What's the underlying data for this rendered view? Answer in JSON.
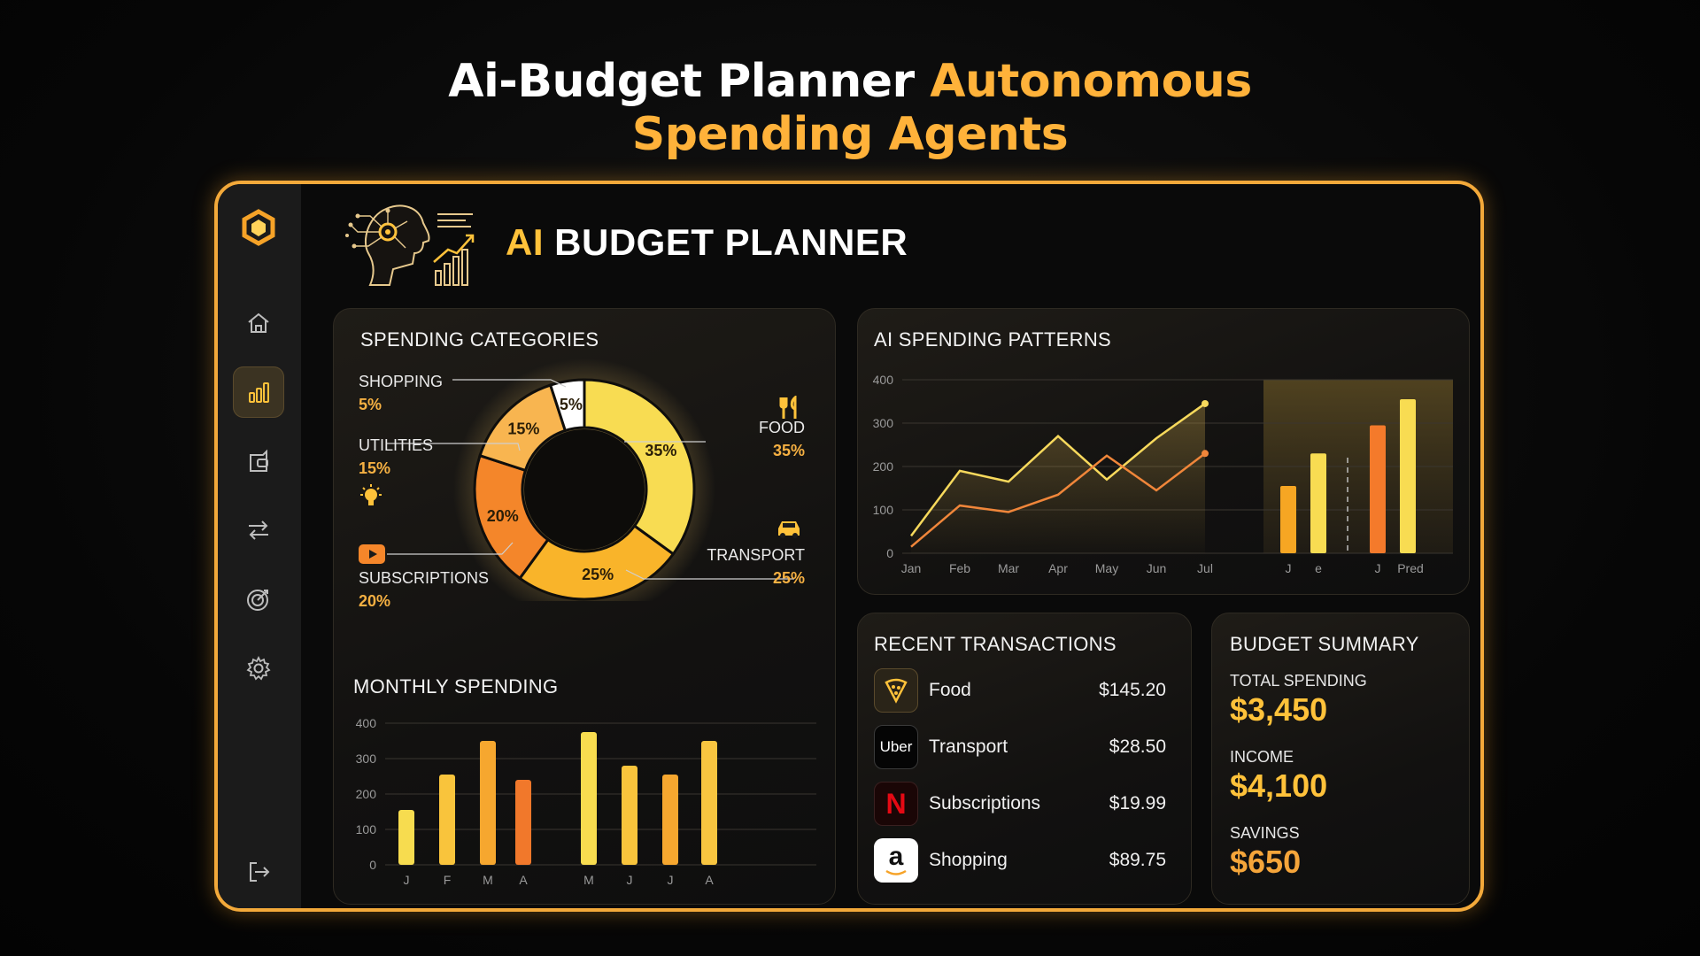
{
  "headline": {
    "line1_white": "Ai-Budget Planner",
    "line1_orange": "Autonomous",
    "line2_orange": "Spending Agents"
  },
  "app": {
    "title_accent": "AI",
    "title_rest": "BUDGET PLANNER"
  },
  "sidebar": {
    "items": [
      {
        "icon": "home-icon"
      },
      {
        "icon": "bar-chart-icon",
        "active": true
      },
      {
        "icon": "wallet-icon"
      },
      {
        "icon": "transfer-icon"
      },
      {
        "icon": "target-icon"
      },
      {
        "icon": "settings-icon"
      }
    ],
    "logout_icon": "logout-icon"
  },
  "spending_categories": {
    "title": "SPENDING CATEGORIES",
    "items": [
      {
        "label": "SHOPPING",
        "pct": "5%"
      },
      {
        "label": "UTILITIES",
        "pct": "15%"
      },
      {
        "label": "SUBSCRIPTIONS",
        "pct": "20%"
      },
      {
        "label": "FOOD",
        "pct": "35%"
      },
      {
        "label": "TRANSPORT",
        "pct": "25%"
      }
    ]
  },
  "monthly_spending": {
    "title": "MONTHLY SPENDING"
  },
  "ai_patterns": {
    "title": "AI SPENDING PATTERNS"
  },
  "recent_transactions": {
    "title": "RECENT TRANSACTIONS",
    "items": [
      {
        "name": "Food",
        "amount": "$145.20",
        "icon": "pizza-icon"
      },
      {
        "name": "Transport",
        "amount": "$28.50",
        "icon": "uber-icon",
        "icon_text": "Uber"
      },
      {
        "name": "Subscriptions",
        "amount": "$19.99",
        "icon": "netflix-icon",
        "icon_text": "N"
      },
      {
        "name": "Shopping",
        "amount": "$89.75",
        "icon": "amazon-icon",
        "icon_text": "a"
      }
    ]
  },
  "budget_summary": {
    "title": "BUDGET SUMMARY",
    "total_label": "TOTAL SPENDING",
    "total_value": "$3,450",
    "income_label": "INCOME",
    "income_value": "$4,100",
    "savings_label": "SAVINGS",
    "savings_value": "$650"
  },
  "colors": {
    "accent": "#ffc23a",
    "orange": "#f5862a",
    "yellow": "#f7dc55",
    "frame": "#f3a93a"
  },
  "chart_data": [
    {
      "id": "spending-categories",
      "type": "pie",
      "categories": [
        "FOOD",
        "TRANSPORT",
        "SUBSCRIPTIONS",
        "UTILITIES",
        "SHOPPING"
      ],
      "values": [
        35,
        25,
        20,
        15,
        5
      ],
      "slice_labels": [
        "35%",
        "25%",
        "20%",
        "15%",
        "5%"
      ],
      "colors": [
        "#f8dc52",
        "#f9b42a",
        "#f4862a",
        "#f8b550",
        "#ffffff"
      ],
      "donut": true
    },
    {
      "id": "monthly-spending",
      "type": "bar",
      "categories": [
        "J",
        "F",
        "M",
        "A",
        "M",
        "J",
        "J",
        "A"
      ],
      "values": [
        155,
        255,
        350,
        240,
        375,
        280,
        255,
        350
      ],
      "colors": [
        "#f7dc4f",
        "#f9c43c",
        "#f6a72f",
        "#f1782b",
        "#f8dc4f",
        "#f9c43c",
        "#f6a72f",
        "#f8c540"
      ],
      "yticks": [
        0,
        100,
        200,
        300,
        400
      ],
      "ylim": [
        0,
        400
      ]
    },
    {
      "id": "ai-spending-patterns",
      "type": "line",
      "x": [
        "Jan",
        "Feb",
        "Mar",
        "Apr",
        "May",
        "Jun",
        "Jul"
      ],
      "series": [
        {
          "values": [
            40,
            190,
            165,
            270,
            170,
            265,
            345
          ],
          "color": "#f7d95c"
        },
        {
          "values": [
            15,
            110,
            95,
            135,
            225,
            145,
            230
          ],
          "color": "#f0863a"
        }
      ],
      "prediction_bars": {
        "categories": [
          "J",
          "e",
          "J",
          "Pred"
        ],
        "values": [
          155,
          230,
          295,
          355
        ],
        "colors": [
          "#f6a623",
          "#f8dc52",
          "#f47a2b",
          "#f8dc52"
        ]
      },
      "yticks": [
        0,
        100,
        200,
        300,
        400
      ],
      "ylim": [
        0,
        400
      ]
    }
  ]
}
